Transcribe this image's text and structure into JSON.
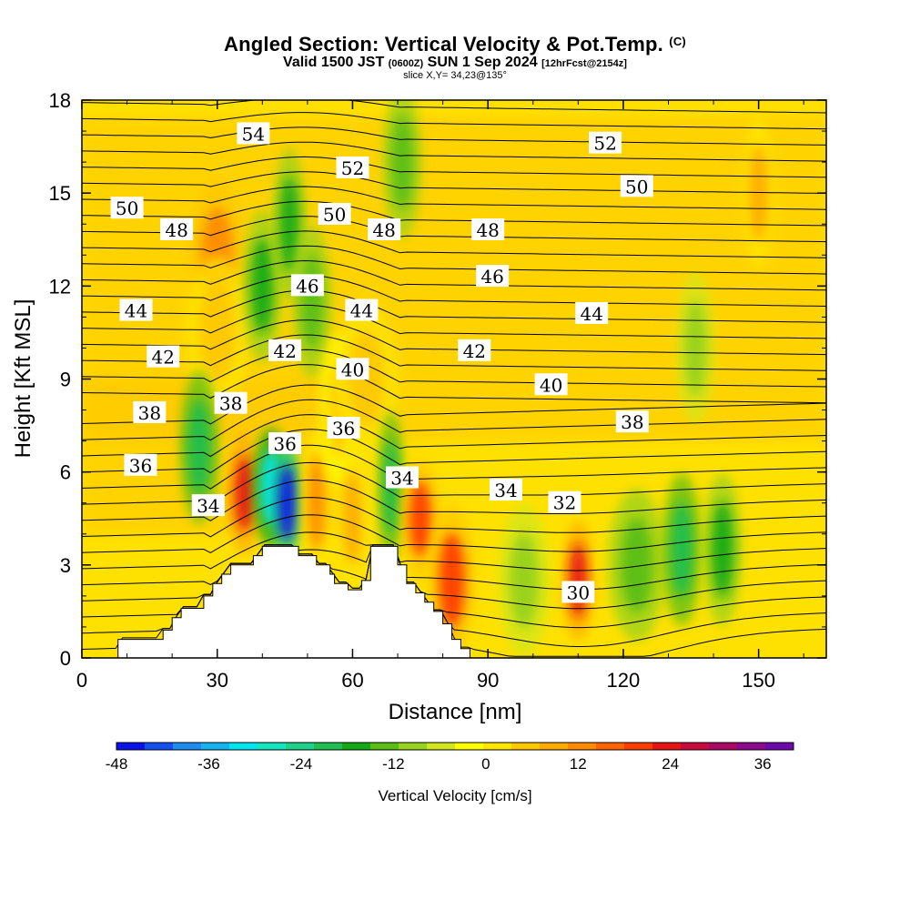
{
  "header": {
    "title": "Angled Section: Vertical Velocity & Pot.Temp.",
    "title_tag": "(C)",
    "subtitle_main": "Valid 1500 JST",
    "subtitle_zulu": "(0600Z)",
    "subtitle_date": "SUN 1 Sep 2024",
    "subtitle_fcst": "[12hrFcst@2154z]",
    "slice": "slice X,Y= 34,23@135°"
  },
  "chart_data": {
    "type": "heatmap",
    "title": "Angled Section: Vertical Velocity & Pot.Temp.",
    "xlabel": "Distance [nm]",
    "ylabel": "Height [Kft MSL]",
    "xlim": [
      0,
      165
    ],
    "ylim": [
      0,
      18
    ],
    "x_ticks": [
      0,
      30,
      60,
      90,
      120,
      150
    ],
    "y_ticks": [
      0,
      3,
      6,
      9,
      12,
      15,
      18
    ],
    "colorbar": {
      "title": "Vertical Velocity [cm/s]",
      "ticks": [
        -48,
        -36,
        -24,
        -12,
        0,
        12,
        24,
        36
      ],
      "range": [
        -48,
        40
      ],
      "step": 4,
      "colors": [
        "#0a14e6",
        "#1450f0",
        "#1e8cf0",
        "#14b4f0",
        "#00e6f0",
        "#14e6be",
        "#1ed28c",
        "#1ebe50",
        "#14aa14",
        "#5abe14",
        "#96d21e",
        "#d2e61e",
        "#ffff00",
        "#ffe600",
        "#ffc800",
        "#ffaa00",
        "#ff8c00",
        "#ff6400",
        "#ff3c00",
        "#e61414",
        "#c80a3c",
        "#aa0a64",
        "#8c0a8c",
        "#6e0aaa"
      ]
    },
    "vertical_velocity_cells": [
      {
        "x": 30,
        "y": 13,
        "w": 2.2,
        "v": 18
      },
      {
        "x": 30,
        "y": 10.5,
        "w": 2.5,
        "v": 10
      },
      {
        "x": 36,
        "y": 5.3,
        "w": 1.3,
        "v": 30
      },
      {
        "x": 26,
        "y": 6.8,
        "w": 1.5,
        "v": -20
      },
      {
        "x": 42,
        "y": 5.5,
        "w": 1.5,
        "v": -30
      },
      {
        "x": 45.5,
        "y": 5.0,
        "w": 1.2,
        "v": -46
      },
      {
        "x": 40,
        "y": 12,
        "w": 1.5,
        "v": -14
      },
      {
        "x": 46,
        "y": 14,
        "w": 1.3,
        "v": -14
      },
      {
        "x": 51,
        "y": 11.5,
        "w": 1.5,
        "v": -10
      },
      {
        "x": 52,
        "y": 5,
        "w": 1.2,
        "v": 16
      },
      {
        "x": 57,
        "y": 8,
        "w": 1.5,
        "v": 8
      },
      {
        "x": 60,
        "y": 4.5,
        "w": 1.2,
        "v": 14
      },
      {
        "x": 63,
        "y": 9,
        "w": 2.5,
        "v": 10
      },
      {
        "x": 68.5,
        "y": 5.5,
        "w": 1,
        "v": -20
      },
      {
        "x": 71,
        "y": 16,
        "w": 1.5,
        "v": -10
      },
      {
        "x": 75,
        "y": 4.5,
        "w": 1.5,
        "v": 26
      },
      {
        "x": 82,
        "y": 2.5,
        "w": 1.8,
        "v": 24
      },
      {
        "x": 98,
        "y": 2.5,
        "w": 2,
        "v": -8
      },
      {
        "x": 110,
        "y": 2.5,
        "w": 1.2,
        "v": 28
      },
      {
        "x": 123,
        "y": 3,
        "w": 2.2,
        "v": -10
      },
      {
        "x": 133,
        "y": 3.5,
        "w": 1.5,
        "v": -18
      },
      {
        "x": 136,
        "y": 10,
        "w": 1.5,
        "v": -8
      },
      {
        "x": 142,
        "y": 3.5,
        "w": 1.5,
        "v": -14
      },
      {
        "x": 150,
        "y": 15,
        "w": 1.2,
        "v": 12
      }
    ],
    "terrain": [
      [
        0,
        0
      ],
      [
        8,
        0
      ],
      [
        8,
        0.6
      ],
      [
        18,
        0.6
      ],
      [
        18,
        0.9
      ],
      [
        20,
        0.9
      ],
      [
        20,
        1.3
      ],
      [
        22,
        1.3
      ],
      [
        22,
        1.6
      ],
      [
        27,
        1.6
      ],
      [
        27,
        2.0
      ],
      [
        29,
        2.0
      ],
      [
        29,
        2.4
      ],
      [
        31,
        2.4
      ],
      [
        31,
        2.7
      ],
      [
        33,
        2.7
      ],
      [
        33,
        3.0
      ],
      [
        38,
        3.0
      ],
      [
        38,
        3.3
      ],
      [
        40,
        3.3
      ],
      [
        40,
        3.6
      ],
      [
        48,
        3.6
      ],
      [
        48,
        3.3
      ],
      [
        52,
        3.3
      ],
      [
        52,
        3.0
      ],
      [
        55,
        3.0
      ],
      [
        55,
        2.7
      ],
      [
        56,
        2.7
      ],
      [
        56,
        2.4
      ],
      [
        59,
        2.4
      ],
      [
        59,
        2.2
      ],
      [
        62,
        2.2
      ],
      [
        62,
        2.5
      ],
      [
        64,
        2.5
      ],
      [
        64,
        3.6
      ],
      [
        70,
        3.6
      ],
      [
        70,
        3.0
      ],
      [
        72,
        3.0
      ],
      [
        72,
        2.4
      ],
      [
        74,
        2.4
      ],
      [
        74,
        2.1
      ],
      [
        76,
        2.1
      ],
      [
        76,
        1.8
      ],
      [
        78,
        1.8
      ],
      [
        78,
        1.5
      ],
      [
        80,
        1.5
      ],
      [
        80,
        1.1
      ],
      [
        82,
        1.1
      ],
      [
        82,
        0.6
      ],
      [
        84,
        0.6
      ],
      [
        84,
        0.3
      ],
      [
        86,
        0.3
      ],
      [
        86,
        0
      ]
    ],
    "theta_isotherms": [
      {
        "value": 30,
        "label": "30",
        "labelx": 110,
        "labely": 2.1
      },
      {
        "value": 32,
        "label": "32",
        "labelx": 107,
        "labely": 5.0
      },
      {
        "value": 34,
        "label": "34",
        "labelx": 28,
        "labely": 4.9
      },
      {
        "value": 34,
        "label": "34",
        "labelx": 71,
        "labely": 5.8
      },
      {
        "value": 34,
        "label": "34",
        "labelx": 94,
        "labely": 5.4
      },
      {
        "value": 36,
        "label": "36",
        "labelx": 13,
        "labely": 6.2
      },
      {
        "value": 36,
        "label": "36",
        "labelx": 45,
        "labely": 6.9
      },
      {
        "value": 36,
        "label": "36",
        "labelx": 58,
        "labely": 7.4
      },
      {
        "value": 38,
        "label": "38",
        "labelx": 15,
        "labely": 7.9
      },
      {
        "value": 38,
        "label": "38",
        "labelx": 33,
        "labely": 8.2
      },
      {
        "value": 38,
        "label": "38",
        "labelx": 122,
        "labely": 7.6
      },
      {
        "value": 40,
        "label": "40",
        "labelx": 60,
        "labely": 9.3
      },
      {
        "value": 40,
        "label": "40",
        "labelx": 104,
        "labely": 8.8
      },
      {
        "value": 42,
        "label": "42",
        "labelx": 18,
        "labely": 9.7
      },
      {
        "value": 42,
        "label": "42",
        "labelx": 45,
        "labely": 9.9
      },
      {
        "value": 42,
        "label": "42",
        "labelx": 87,
        "labely": 9.9
      },
      {
        "value": 44,
        "label": "44",
        "labelx": 12,
        "labely": 11.2
      },
      {
        "value": 44,
        "label": "44",
        "labelx": 62,
        "labely": 11.2
      },
      {
        "value": 44,
        "label": "44",
        "labelx": 113,
        "labely": 11.1
      },
      {
        "value": 46,
        "label": "46",
        "labelx": 50,
        "labely": 12.0
      },
      {
        "value": 46,
        "label": "46",
        "labelx": 91,
        "labely": 12.3
      },
      {
        "value": 48,
        "label": "48",
        "labelx": 21,
        "labely": 13.8
      },
      {
        "value": 48,
        "label": "48",
        "labelx": 67,
        "labely": 13.8
      },
      {
        "value": 48,
        "label": "48",
        "labelx": 90,
        "labely": 13.8
      },
      {
        "value": 50,
        "label": "50",
        "labelx": 10,
        "labely": 14.5
      },
      {
        "value": 50,
        "label": "50",
        "labelx": 56,
        "labely": 14.3
      },
      {
        "value": 50,
        "label": "50",
        "labelx": 123,
        "labely": 15.2
      },
      {
        "value": 52,
        "label": "52",
        "labelx": 60,
        "labely": 15.8
      },
      {
        "value": 52,
        "label": "52",
        "labelx": 116,
        "labely": 16.6
      },
      {
        "value": 54,
        "label": "54",
        "labelx": 38,
        "labely": 16.9
      }
    ]
  }
}
